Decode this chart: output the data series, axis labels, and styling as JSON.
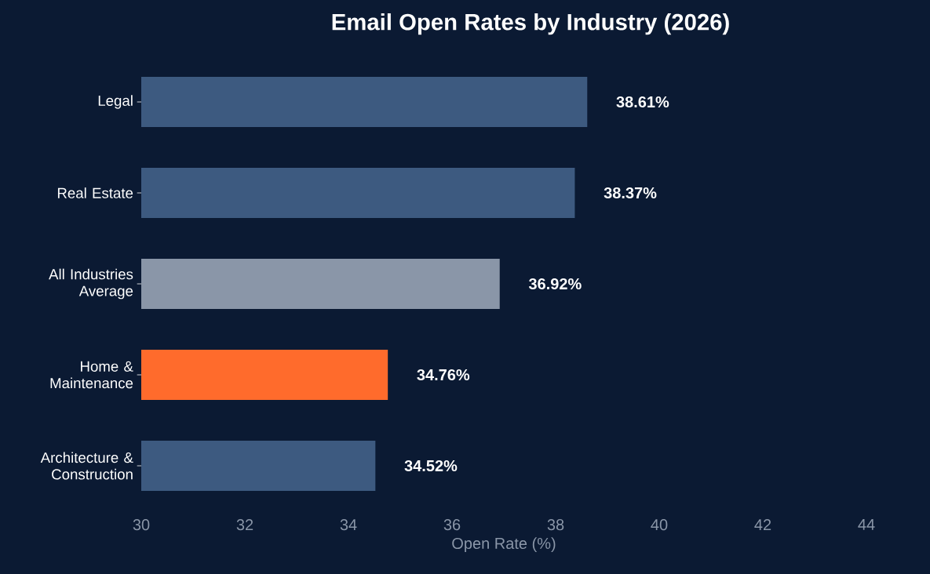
{
  "chart_data": {
    "type": "bar",
    "orientation": "horizontal",
    "title": "Email Open Rates by Industry (2026)",
    "xlabel": "Open Rate (%)",
    "categories": [
      "Legal",
      "Real Estate",
      "All Industries Average",
      "Home & Maintenance",
      "Architecture & Construction"
    ],
    "values": [
      38.61,
      38.37,
      36.92,
      34.76,
      34.52
    ],
    "colors": [
      "#3d5a80",
      "#3d5a80",
      "#8a96a8",
      "#ff6b2c",
      "#3d5a80"
    ],
    "value_labels": [
      "38.61%",
      "38.37%",
      "36.92%",
      "34.76%",
      "34.52%"
    ],
    "xlim": [
      30,
      44
    ],
    "xticks": [
      30,
      32,
      34,
      36,
      38,
      40,
      42,
      44
    ]
  }
}
